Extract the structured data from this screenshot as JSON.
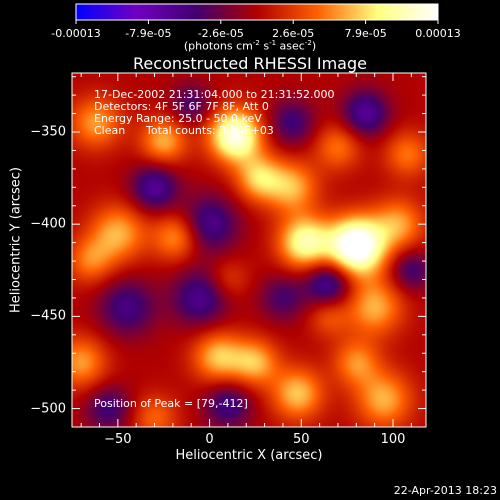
{
  "chart_data": {
    "type": "heatmap",
    "title": "Reconstructed RHESSI Image",
    "xlabel": "Heliocentric X (arcsec)",
    "ylabel": "Heliocentric Y (arcsec)",
    "xlim": [
      -75,
      118
    ],
    "ylim": [
      -510,
      -318
    ],
    "x_ticks": [
      "-50",
      "0",
      "50",
      "100"
    ],
    "x_tick_values": [
      -50,
      0,
      50,
      100
    ],
    "y_ticks": [
      "-350",
      "-400",
      "-450",
      "-500"
    ],
    "y_tick_values": [
      -350,
      -400,
      -450,
      -500
    ],
    "colorbar": {
      "tick_labels": [
        "-0.00013",
        "-7.9e-05",
        "-2.6e-05",
        "2.6e-05",
        "7.9e-05",
        "0.00013"
      ],
      "range": [
        -0.00013,
        0.00013
      ],
      "units": "(photons cm-2 s-1 asec-2)",
      "colormap": [
        "#0000ff",
        "#7000c0",
        "#400070",
        "#b00000",
        "#ff6000",
        "#ffff80",
        "#ffffff"
      ]
    },
    "annotations": {
      "time_range": "17-Dec-2002 21:31:04.000 to 21:31:52.000",
      "detectors": "Detectors: 4F 5F 6F 7F 8F, Att 0",
      "energy": "Energy Range: 25.0 - 50.0 keV",
      "clean_label": "Clean",
      "total_counts": "Total counts: 3.84E+03",
      "peak": "Position of Peak = [79,-412]"
    },
    "peak_position": [
      79,
      -412
    ],
    "features": [
      {
        "x": 80,
        "y": -412,
        "a": 1.3,
        "s": 11
      },
      {
        "x": 14,
        "y": -352,
        "a": 1.05,
        "s": 10
      },
      {
        "x": 52,
        "y": -410,
        "a": 0.85,
        "s": 10
      },
      {
        "x": 45,
        "y": -380,
        "a": 0.55,
        "s": 10
      },
      {
        "x": 27,
        "y": -375,
        "a": 0.6,
        "s": 9
      },
      {
        "x": -25,
        "y": -355,
        "a": 0.55,
        "s": 9
      },
      {
        "x": -62,
        "y": -345,
        "a": 0.5,
        "s": 10
      },
      {
        "x": -50,
        "y": -405,
        "a": 0.55,
        "s": 11
      },
      {
        "x": -18,
        "y": -407,
        "a": 0.5,
        "s": 9
      },
      {
        "x": -65,
        "y": -420,
        "a": 0.4,
        "s": 9
      },
      {
        "x": 90,
        "y": -445,
        "a": 0.55,
        "s": 11
      },
      {
        "x": 103,
        "y": -400,
        "a": 0.5,
        "s": 10
      },
      {
        "x": 108,
        "y": -362,
        "a": 0.4,
        "s": 9
      },
      {
        "x": 70,
        "y": -358,
        "a": 0.4,
        "s": 9
      },
      {
        "x": 5,
        "y": -472,
        "a": 0.6,
        "s": 10
      },
      {
        "x": 25,
        "y": -475,
        "a": 0.55,
        "s": 9
      },
      {
        "x": 48,
        "y": -492,
        "a": 0.6,
        "s": 10
      },
      {
        "x": -70,
        "y": -475,
        "a": 0.5,
        "s": 10
      },
      {
        "x": 95,
        "y": -495,
        "a": 0.55,
        "s": 11
      },
      {
        "x": 80,
        "y": -475,
        "a": 0.45,
        "s": 9
      },
      {
        "x": -30,
        "y": -505,
        "a": 0.35,
        "s": 9
      },
      {
        "x": 10,
        "y": -430,
        "a": 0.25,
        "s": 8
      },
      {
        "x": 65,
        "y": -450,
        "a": 0.3,
        "s": 8
      },
      {
        "x": -30,
        "y": -380,
        "a": -0.55,
        "s": 9
      },
      {
        "x": 0,
        "y": -400,
        "a": -0.5,
        "s": 11
      },
      {
        "x": -5,
        "y": -440,
        "a": -0.5,
        "s": 11
      },
      {
        "x": -45,
        "y": -445,
        "a": -0.45,
        "s": 11
      },
      {
        "x": 65,
        "y": -432,
        "a": -0.6,
        "s": 9
      },
      {
        "x": 10,
        "y": -498,
        "a": -0.45,
        "s": 9
      },
      {
        "x": 85,
        "y": -340,
        "a": -0.55,
        "s": 9
      },
      {
        "x": -55,
        "y": -500,
        "a": -0.4,
        "s": 9
      },
      {
        "x": 45,
        "y": -345,
        "a": -0.4,
        "s": 9
      },
      {
        "x": 110,
        "y": -425,
        "a": -0.4,
        "s": 8
      },
      {
        "x": -10,
        "y": -335,
        "a": -0.35,
        "s": 8
      },
      {
        "x": 40,
        "y": -440,
        "a": -0.35,
        "s": 9
      }
    ]
  },
  "footer": {
    "timestamp": "22-Apr-2013 18:23"
  }
}
